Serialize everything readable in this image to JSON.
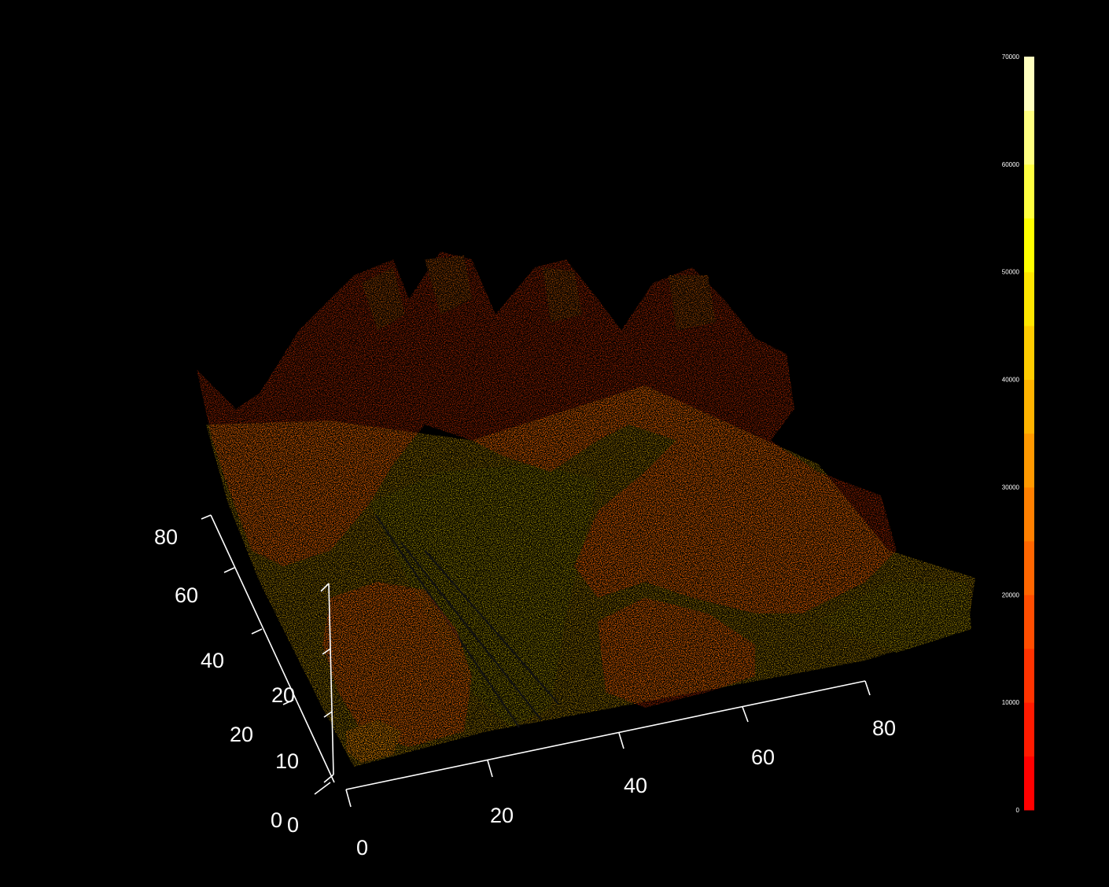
{
  "chart_data": {
    "type": "scatter",
    "subtype": "3d-point-cloud",
    "title": "",
    "background": "#000000",
    "color_palette": "heat",
    "x_axis": {
      "ticks": [
        "0",
        "20",
        "40",
        "60",
        "80"
      ],
      "range": [
        0,
        90
      ]
    },
    "y_axis": {
      "ticks": [
        "0",
        "20",
        "40",
        "60",
        "80"
      ],
      "range": [
        0,
        90
      ]
    },
    "z_axis": {
      "ticks": [
        "0",
        "10",
        "20"
      ],
      "range": [
        0,
        25
      ]
    },
    "colorbar": {
      "ticks": [
        "0",
        "10000",
        "20000",
        "30000",
        "40000",
        "50000",
        "60000",
        "70000"
      ],
      "range": [
        0,
        70000
      ],
      "colors": [
        "#ff0000",
        "#ff1a00",
        "#ff3300",
        "#ff4d00",
        "#ff6600",
        "#ff8000",
        "#ff9900",
        "#ffb300",
        "#ffcc00",
        "#ffe600",
        "#ffff00",
        "#ffff40",
        "#ffff80",
        "#ffffbf"
      ]
    },
    "point_colors": {
      "canopy": "#ff3c00",
      "canopy_highlight": "#ff6a00",
      "ground": "#ffcc00",
      "ground_highlight": "#ffee00",
      "road": "#f2d000"
    }
  }
}
